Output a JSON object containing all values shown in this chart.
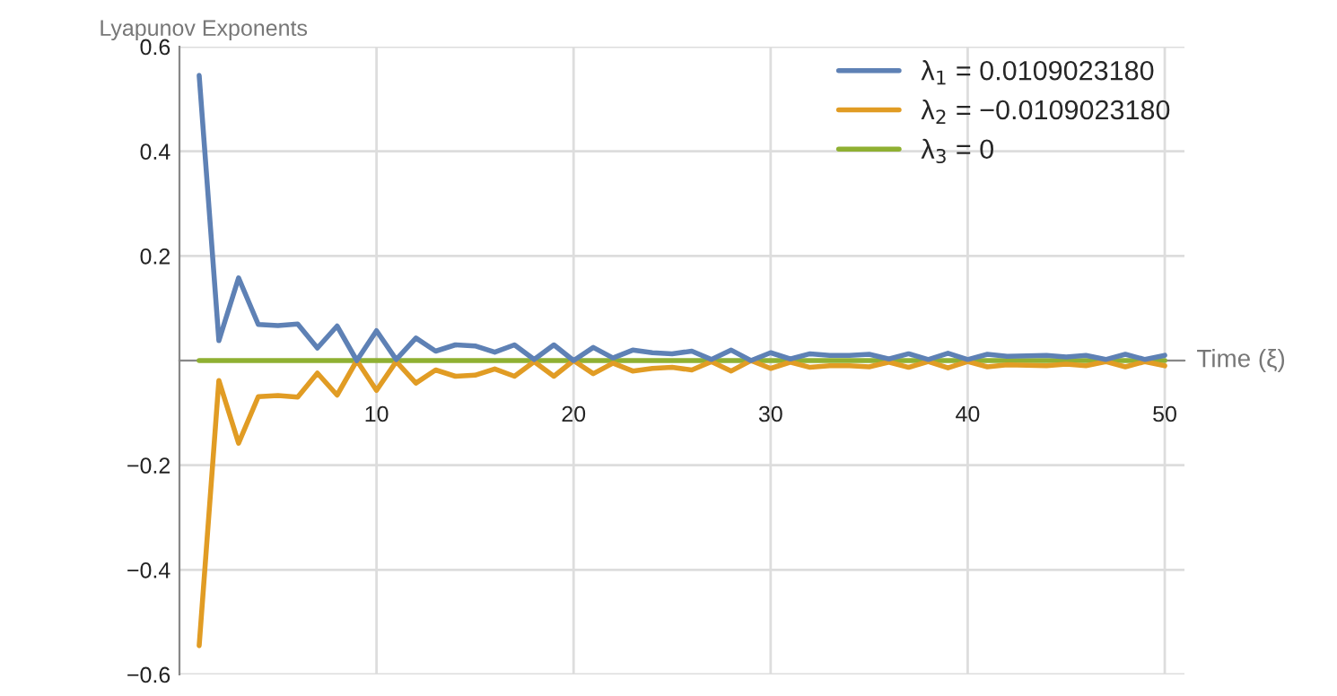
{
  "chart_data": {
    "type": "line",
    "xlabel": "Time (ξ)",
    "ylabel": "Lyapunov Exponents",
    "x": [
      1,
      2,
      3,
      4,
      5,
      6,
      7,
      8,
      9,
      10,
      11,
      12,
      13,
      14,
      15,
      16,
      17,
      18,
      19,
      20,
      21,
      22,
      23,
      24,
      25,
      26,
      27,
      28,
      29,
      30,
      31,
      32,
      33,
      34,
      35,
      36,
      37,
      38,
      39,
      40,
      41,
      42,
      43,
      44,
      45,
      46,
      47,
      48,
      49,
      50
    ],
    "series": [
      {
        "name": "λ$_{1}$ = 0.0109023180",
        "color": "#5e81b5",
        "values": [
          0.545,
          0.038,
          0.158,
          0.069,
          0.067,
          0.07,
          0.024,
          0.066,
          0.0,
          0.057,
          0.002,
          0.043,
          0.018,
          0.03,
          0.028,
          0.016,
          0.03,
          0.002,
          0.03,
          0.0,
          0.025,
          0.005,
          0.02,
          0.015,
          0.013,
          0.018,
          0.002,
          0.02,
          0.0,
          0.015,
          0.003,
          0.013,
          0.01,
          0.01,
          0.012,
          0.003,
          0.013,
          0.002,
          0.014,
          0.002,
          0.012,
          0.008,
          0.009,
          0.01,
          0.007,
          0.01,
          0.002,
          0.012,
          0.002,
          0.01
        ]
      },
      {
        "name": "λ$_{2}$ = −0.0109023180",
        "color": "#e19c24",
        "values": [
          -0.545,
          -0.038,
          -0.158,
          -0.069,
          -0.067,
          -0.07,
          -0.024,
          -0.066,
          0.0,
          -0.057,
          -0.002,
          -0.043,
          -0.018,
          -0.03,
          -0.028,
          -0.016,
          -0.03,
          -0.002,
          -0.03,
          0.0,
          -0.025,
          -0.005,
          -0.02,
          -0.015,
          -0.013,
          -0.018,
          -0.002,
          -0.02,
          0.0,
          -0.015,
          -0.003,
          -0.013,
          -0.01,
          -0.01,
          -0.012,
          -0.003,
          -0.013,
          -0.002,
          -0.014,
          -0.002,
          -0.012,
          -0.008,
          -0.009,
          -0.01,
          -0.007,
          -0.01,
          -0.002,
          -0.012,
          -0.002,
          -0.01
        ]
      },
      {
        "name": "λ$_{3}$ = 0",
        "color": "#8fb032",
        "values": [
          0,
          0,
          0,
          0,
          0,
          0,
          0,
          0,
          0,
          0,
          0,
          0,
          0,
          0,
          0,
          0,
          0,
          0,
          0,
          0,
          0,
          0,
          0,
          0,
          0,
          0,
          0,
          0,
          0,
          0,
          0,
          0,
          0,
          0,
          0,
          0,
          0,
          0,
          0,
          0,
          0,
          0,
          0,
          0,
          0,
          0,
          0,
          0,
          0,
          0
        ]
      }
    ],
    "xlim": [
      0,
      51
    ],
    "xticks": [
      10,
      20,
      30,
      40,
      50
    ],
    "ylim": [
      -0.6,
      0.6
    ],
    "yticks": [
      {
        "value": -0.6,
        "label": "−0.6"
      },
      {
        "value": -0.4,
        "label": "−0.4"
      },
      {
        "value": -0.2,
        "label": "−0.2"
      },
      {
        "value": 0,
        "label": null
      },
      0.2,
      0.4,
      0.6
    ],
    "grid": true,
    "legend": "top right",
    "marker": "none",
    "line_style": "solid"
  }
}
